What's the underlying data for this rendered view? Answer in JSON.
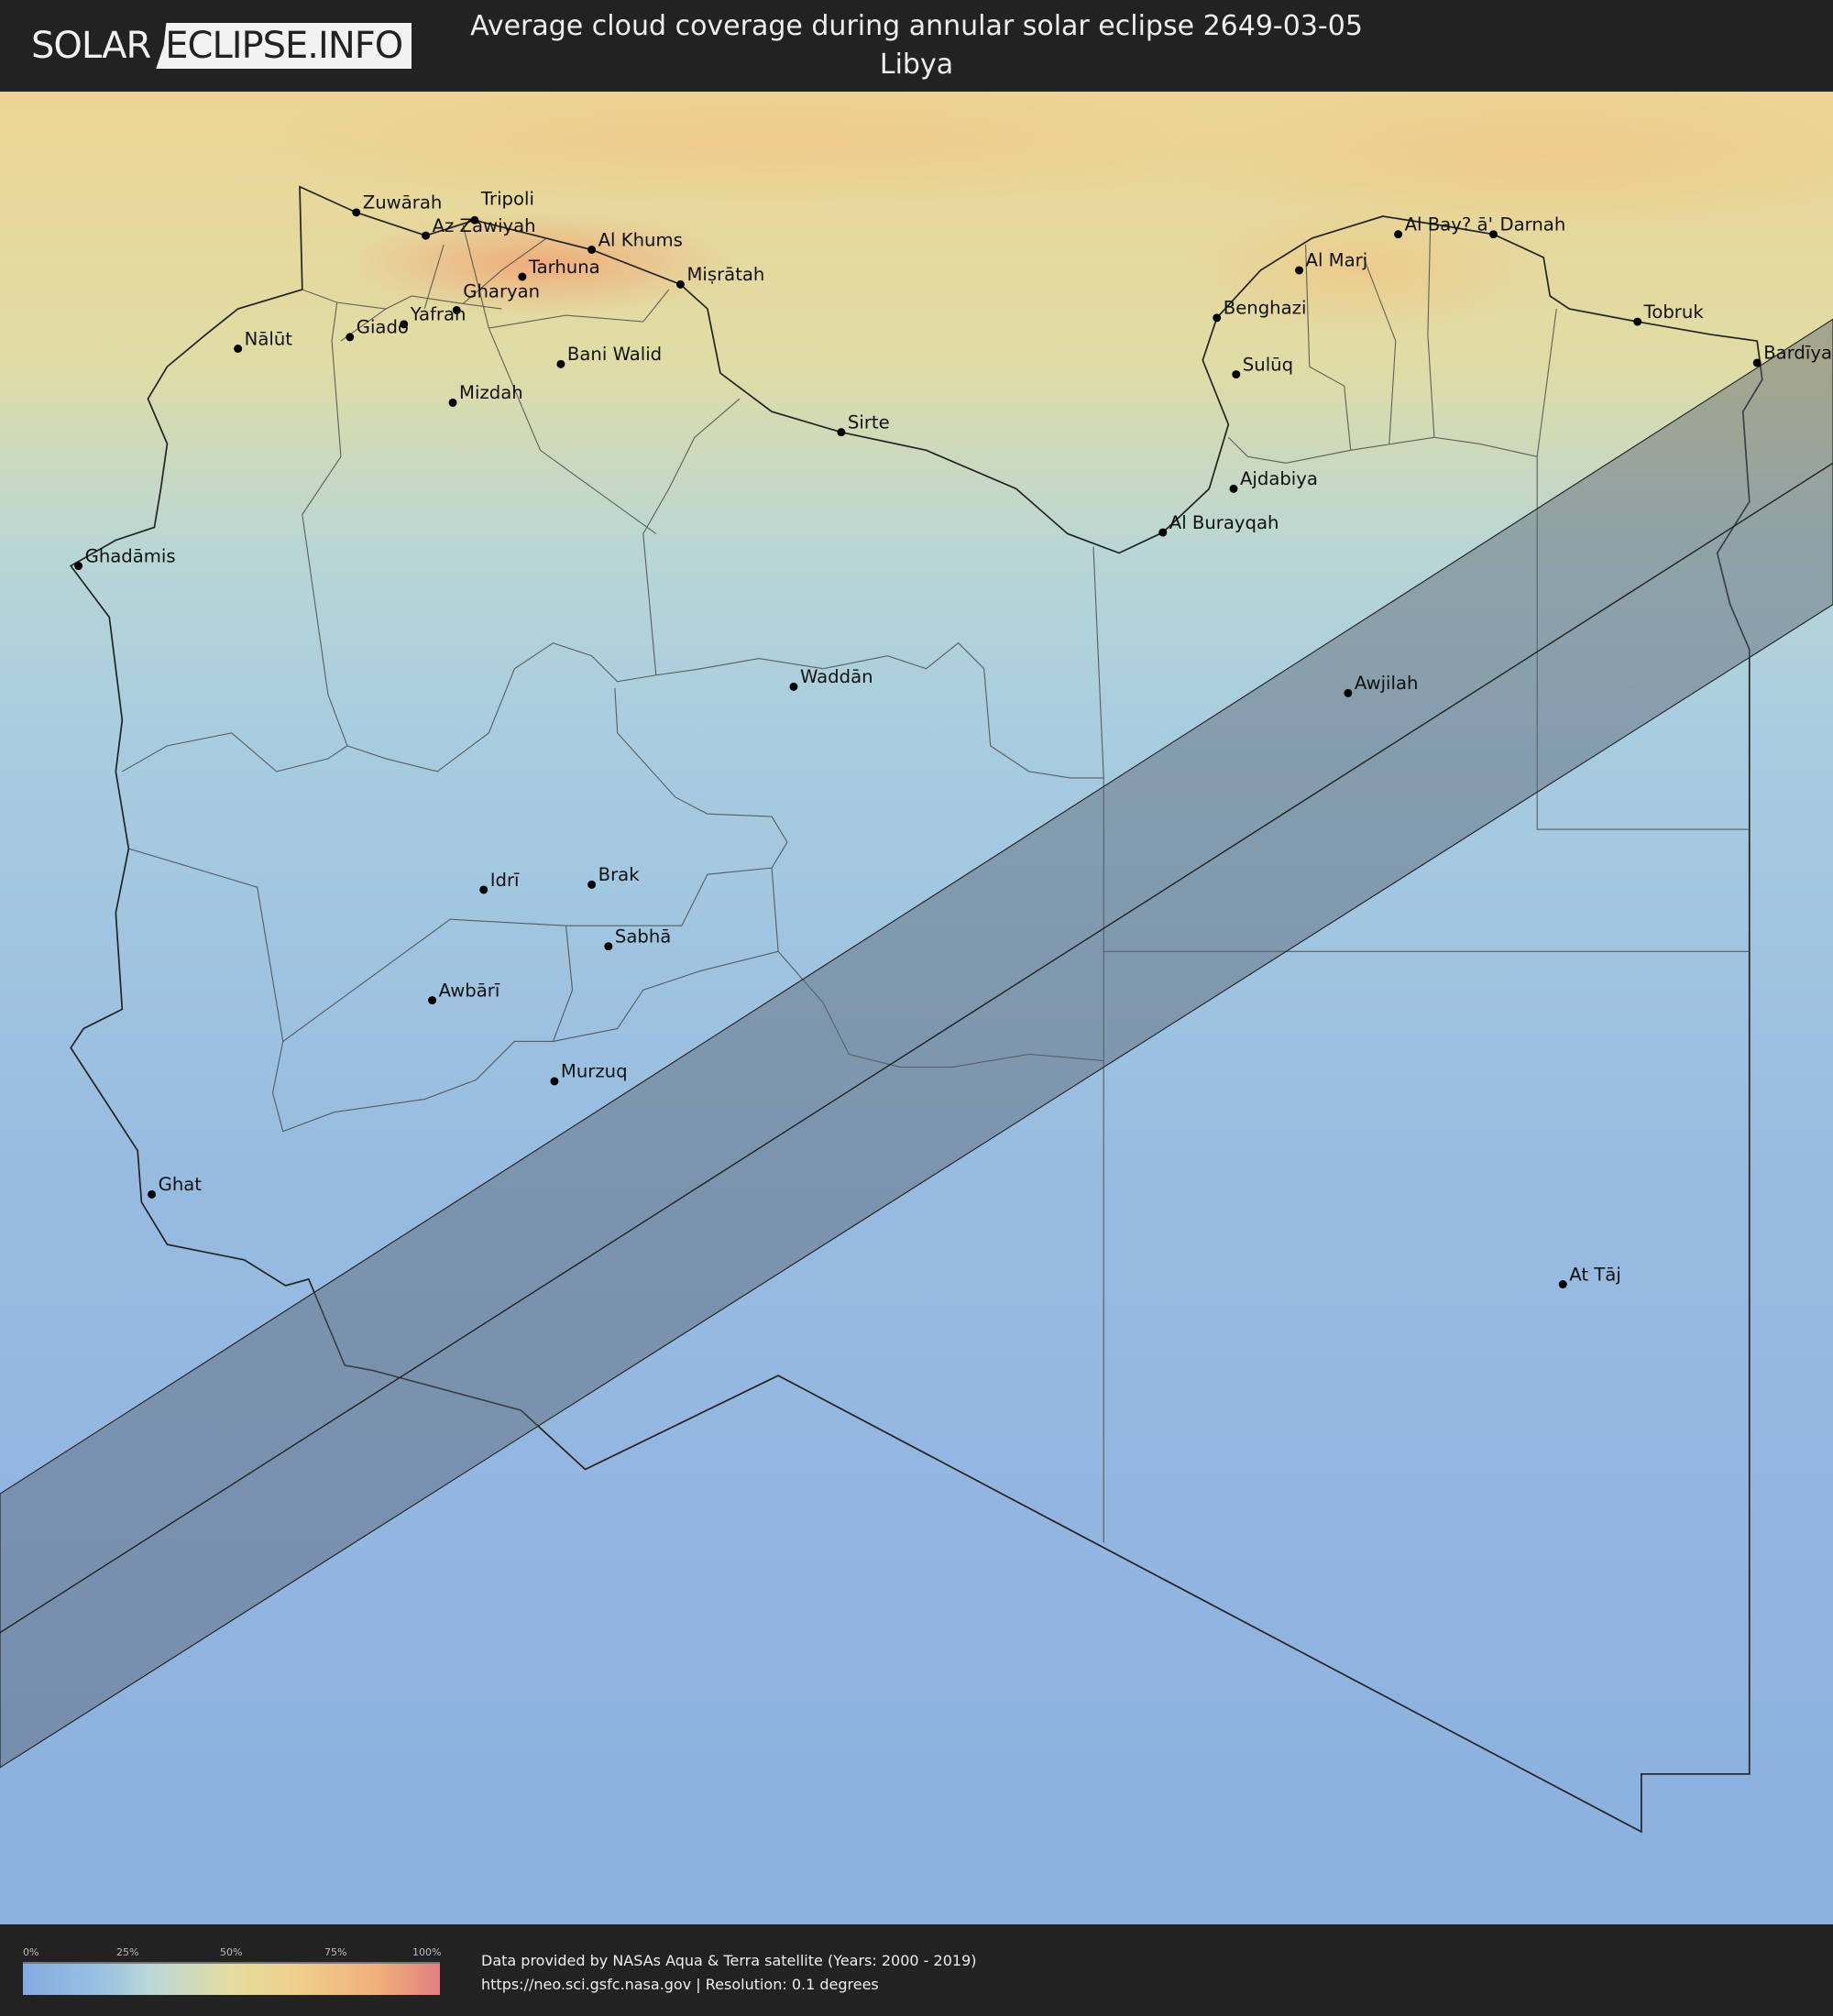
{
  "header": {
    "logo_left": "SOLAR",
    "logo_right": "ECLIPSE.INFO",
    "title": "Average cloud coverage during annular solar eclipse 2649-03-05",
    "subtitle": "Libya"
  },
  "map": {
    "colors": {
      "eclipse_band": "#5a6470",
      "border": "#222222",
      "low_cloud": "#87a9e4",
      "high_cloud": "#e28080"
    },
    "cities": [
      "Zuwārah",
      "Tripoli",
      "Az Zawiyah",
      "Al Khums",
      "Tarhuna",
      "Miṣrātah",
      "Gharyan",
      "Yafran",
      "Giado",
      "Nālūt",
      "Bani Walid",
      "Mizdah",
      "Sirte",
      "Ghadāmis",
      "Benghazi",
      "Al Marj",
      "Al Bay? ā'",
      "Darnah",
      "Tobruk",
      "Bardīyah",
      "Sulūq",
      "Ajdabiya",
      "Al Burayqah",
      "Awjilah",
      "Waddān",
      "Idrī",
      "Brak",
      "Sabhā",
      "Awbārī",
      "Murzuq",
      "Ghat",
      "At Tāj"
    ]
  },
  "legend": {
    "ticks": [
      "0%",
      "25%",
      "50%",
      "75%",
      "100%"
    ],
    "credit_line1": "Data provided by NASAs Aqua & Terra satellite (Years: 2000 - 2019)",
    "credit_line2": "https://neo.sci.gsfc.nasa.gov | Resolution: 0.1 degrees"
  }
}
